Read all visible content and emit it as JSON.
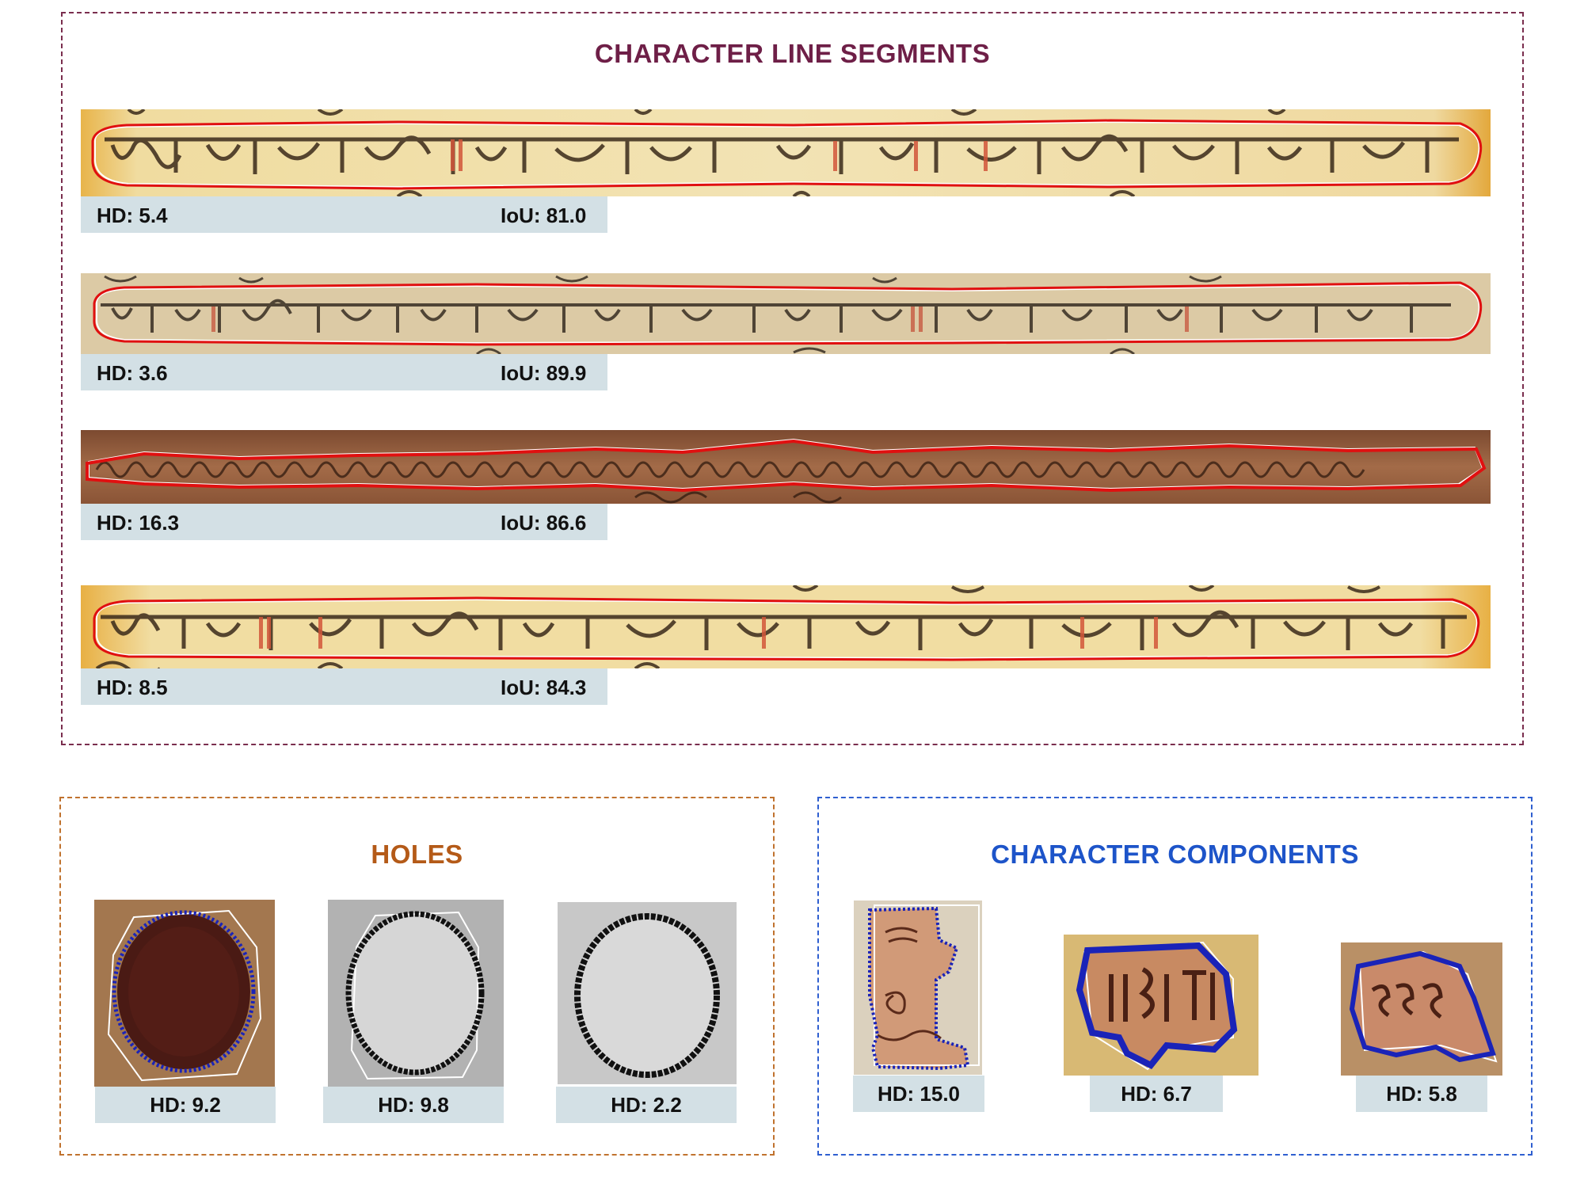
{
  "line_segments": {
    "title": "CHARACTER LINE SEGMENTS",
    "rows": [
      {
        "hd": "HD: 5.4",
        "iou": "IoU: 81.0"
      },
      {
        "hd": "HD: 3.6",
        "iou": "IoU: 89.9"
      },
      {
        "hd": "HD: 16.3",
        "iou": "IoU: 86.6"
      },
      {
        "hd": "HD: 8.5",
        "iou": "IoU: 84.3"
      }
    ]
  },
  "holes": {
    "title": "HOLES",
    "items": [
      {
        "hd": "HD: 9.2"
      },
      {
        "hd": "HD: 9.8"
      },
      {
        "hd": "HD: 2.2"
      }
    ]
  },
  "components": {
    "title": "CHARACTER COMPONENTS",
    "items": [
      {
        "hd": "HD: 15.0"
      },
      {
        "hd": "HD: 6.7"
      },
      {
        "hd": "HD: 5.8"
      }
    ]
  },
  "colors": {
    "prediction_line": "#e01010",
    "ground_truth": "#ffffff",
    "prediction_blob": "#1a23b8",
    "label_bg": "#d3e0e5"
  }
}
